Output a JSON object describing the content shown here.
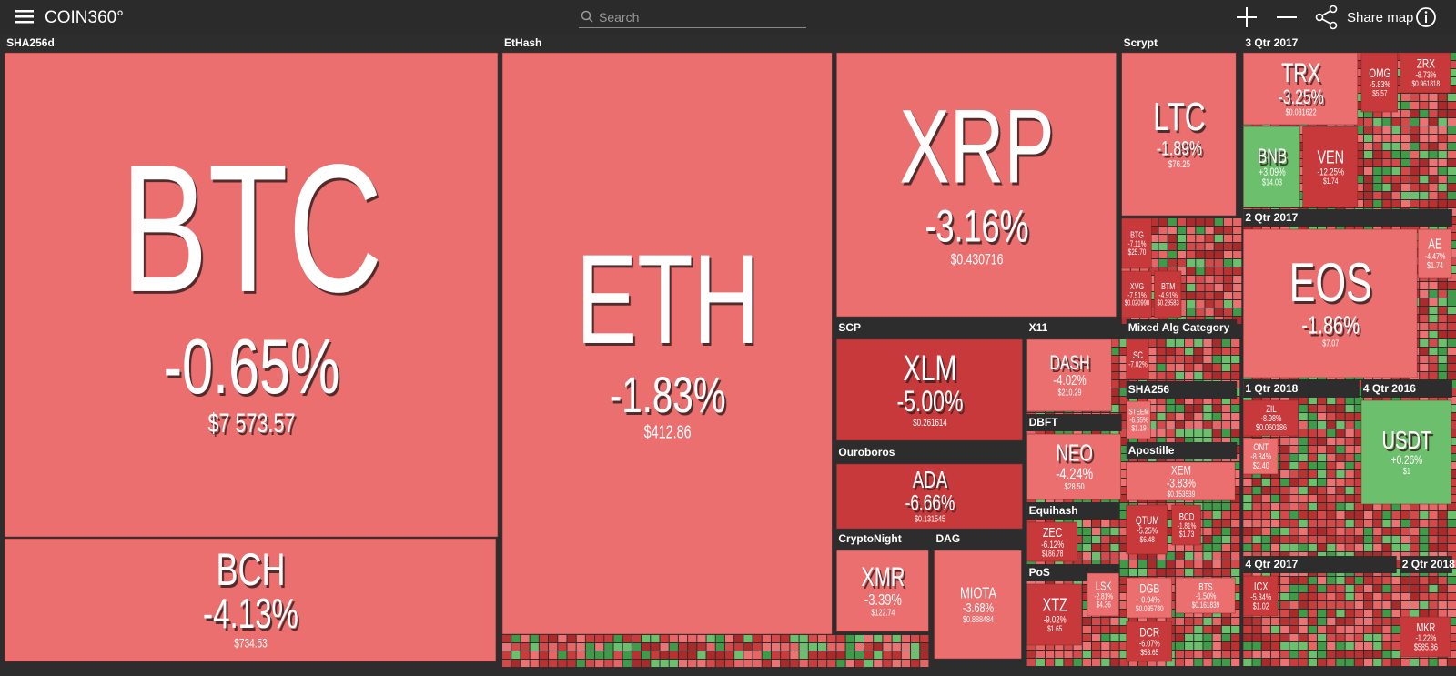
{
  "header": {
    "logo": "COIN360°",
    "search_placeholder": "Search",
    "share_label": "Share map"
  },
  "groups": [
    {
      "name": "SHA256d",
      "tiles": [
        {
          "symbol": "BTC",
          "change": "-0.65%",
          "price": "$7 573.57"
        },
        {
          "symbol": "BCH",
          "change": "-4.13%",
          "price": "$734.53"
        }
      ]
    },
    {
      "name": "EtHash",
      "tiles": [
        {
          "symbol": "ETH",
          "change": "-1.83%",
          "price": "$412.86"
        }
      ]
    },
    {
      "tiles": [
        {
          "symbol": "XRP",
          "change": "-3.16%",
          "price": "$0.430716"
        }
      ]
    },
    {
      "name": "Scrypt",
      "tiles": [
        {
          "symbol": "LTC",
          "change": "-1.89%",
          "price": "$76.25"
        },
        {
          "symbol": "BTG",
          "change": "-7.11%",
          "price": "$25.70"
        },
        {
          "symbol": "XVG",
          "change": "-7.51%",
          "price": "$0.020990"
        },
        {
          "symbol": "BTM",
          "change": "-4.91%",
          "price": "$0.28583"
        }
      ]
    },
    {
      "name": "SCP",
      "tiles": [
        {
          "symbol": "XLM",
          "change": "-5.00%",
          "price": "$0.261614"
        }
      ]
    },
    {
      "name": "X11",
      "tiles": [
        {
          "symbol": "DASH",
          "change": "-4.02%",
          "price": "$210.29"
        }
      ]
    },
    {
      "name": "DBFT",
      "tiles": [
        {
          "symbol": "NEO",
          "change": "-4.24%",
          "price": "$28.50"
        }
      ]
    },
    {
      "name": "Ouroboros",
      "tiles": [
        {
          "symbol": "ADA",
          "change": "-6.66%",
          "price": "$0.131545"
        }
      ]
    },
    {
      "name": "Equihash",
      "tiles": [
        {
          "symbol": "ZEC",
          "change": "-6.12%",
          "price": "$186.78"
        }
      ]
    },
    {
      "name": "CryptoNight",
      "tiles": [
        {
          "symbol": "XMR",
          "change": "-3.39%",
          "price": "$122.74"
        }
      ]
    },
    {
      "name": "DAG",
      "tiles": [
        {
          "symbol": "MIOTA",
          "change": "-3.68%",
          "price": "$0.888484"
        }
      ]
    },
    {
      "name": "PoS",
      "tiles": [
        {
          "symbol": "XTZ",
          "change": "-9.02%",
          "price": "$1.65"
        },
        {
          "symbol": "LSK",
          "change": "-2.81%",
          "price": "$4.36"
        }
      ]
    },
    {
      "name": "Mixed Alg Category",
      "tiles": [
        {
          "symbol": "SC",
          "change": "-7.02%"
        }
      ]
    },
    {
      "name": "SHA256",
      "tiles": [
        {
          "symbol": "STEEM",
          "change": "-6.55%",
          "price": "$1.19"
        }
      ]
    },
    {
      "name": "Apostille",
      "tiles": [
        {
          "symbol": "XEM",
          "change": "-3.83%",
          "price": "$0.153539"
        }
      ]
    },
    {
      "tiles": [
        {
          "symbol": "QTUM",
          "change": "-5.25%",
          "price": "$6.48"
        },
        {
          "symbol": "BCD",
          "change": "-1.81%",
          "price": "$1.73"
        },
        {
          "symbol": "DGB",
          "change": "-0.94%",
          "price": "$0.035780"
        },
        {
          "symbol": "DCR",
          "change": "-6.07%",
          "price": "$53.65"
        },
        {
          "symbol": "BTS",
          "change": "-1.50%",
          "price": "$0.161839"
        }
      ]
    },
    {
      "name": "3 Qtr 2017",
      "tiles": [
        {
          "symbol": "TRX",
          "change": "-3.25%",
          "price": "$0.031622"
        },
        {
          "symbol": "OMG",
          "change": "-5.83%",
          "price": "$5.57"
        },
        {
          "symbol": "ZRX",
          "change": "-8.73%",
          "price": "$0.961818"
        },
        {
          "symbol": "BNB",
          "change": "+3.09%",
          "price": "$14.03"
        },
        {
          "symbol": "VEN",
          "change": "-12.25%",
          "price": "$1.74"
        }
      ]
    },
    {
      "name": "2 Qtr 2017",
      "tiles": [
        {
          "symbol": "EOS",
          "change": "-1.86%",
          "price": "$7.07"
        },
        {
          "symbol": "AE",
          "change": "-4.47%",
          "price": "$1.74"
        }
      ]
    },
    {
      "name": "1 Qtr 2018",
      "tiles": [
        {
          "symbol": "ZIL",
          "change": "-8.98%",
          "price": "$0.060186"
        },
        {
          "symbol": "ONT",
          "change": "-8.34%",
          "price": "$2.40"
        }
      ]
    },
    {
      "name": "4 Qtr 2016",
      "tiles": [
        {
          "symbol": "USDT",
          "change": "+0.26%",
          "price": "$1"
        }
      ]
    },
    {
      "name": "4 Qtr 2017",
      "tiles": [
        {
          "symbol": "ICX",
          "change": "-5.34%",
          "price": "$1.02"
        }
      ]
    },
    {
      "name": "2 Qtr 2018",
      "tiles": [
        {
          "symbol": "MKR",
          "change": "-1.22%",
          "price": "$585.86"
        }
      ]
    }
  ]
}
